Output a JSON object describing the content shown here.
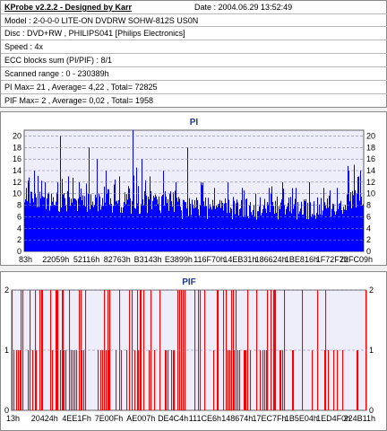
{
  "info": {
    "app_title": "KProbe v2.2.2 - Designed by Karr",
    "date": "Date : 2004.06.29 13:52:49",
    "lines": [
      "Model : 2-0-0-0 LITE-ON DVDRW SOHW-812S  US0N",
      "Disc : DVD+RW , PHILIPS041 [Philips Electronics]",
      "Speed : 4x",
      "ECC blocks sum (PI/PIF) : 8/1",
      "Scanned range : 0 - 230389h",
      "PI Max= 21 , Average= 4,22 , Total= 72825",
      "PIF Max= 2 , Average= 0,02 , Total= 1958"
    ]
  },
  "colors": {
    "pi_bar": "#0000ff",
    "pif_bar": "#ff0000",
    "plot_bg": "#eeeefa",
    "grid": "#8080a0",
    "title": "#1c3a8c"
  },
  "chart_data": [
    {
      "type": "bar",
      "title": "PI",
      "ylim": [
        0,
        21
      ],
      "yticks_left": [
        "20",
        "18",
        "16",
        "14",
        "12",
        "10",
        "8",
        "6",
        "4",
        "2",
        "0"
      ],
      "yticks_right": [
        "20",
        "18",
        "16",
        "14",
        "12",
        "10",
        "8",
        "6",
        "4",
        "2",
        "0"
      ],
      "xticks": [
        "83h",
        "22059h",
        "52116h",
        "82763h",
        "B3143h",
        "E3899h",
        "116F70h",
        "14EB31h",
        "186624h",
        "1BE816h",
        "1F72F7h",
        "22FC09h"
      ],
      "grid": "dashed horizontal",
      "baseline_level": 7,
      "max": 21,
      "average": 4.22,
      "spikes": [
        {
          "x": 0.004,
          "v": 11
        },
        {
          "x": 0.03,
          "v": 14
        },
        {
          "x": 0.06,
          "v": 12
        },
        {
          "x": 0.08,
          "v": 10
        },
        {
          "x": 0.105,
          "v": 20
        },
        {
          "x": 0.13,
          "v": 13
        },
        {
          "x": 0.16,
          "v": 12
        },
        {
          "x": 0.19,
          "v": 18
        },
        {
          "x": 0.215,
          "v": 16
        },
        {
          "x": 0.24,
          "v": 14
        },
        {
          "x": 0.28,
          "v": 13
        },
        {
          "x": 0.32,
          "v": 21
        },
        {
          "x": 0.345,
          "v": 16
        },
        {
          "x": 0.37,
          "v": 13
        },
        {
          "x": 0.41,
          "v": 14
        },
        {
          "x": 0.445,
          "v": 12
        },
        {
          "x": 0.48,
          "v": 18
        },
        {
          "x": 0.52,
          "v": 12
        },
        {
          "x": 0.56,
          "v": 11
        },
        {
          "x": 0.6,
          "v": 12
        },
        {
          "x": 0.64,
          "v": 11
        },
        {
          "x": 0.68,
          "v": 10
        },
        {
          "x": 0.72,
          "v": 11
        },
        {
          "x": 0.76,
          "v": 12
        },
        {
          "x": 0.8,
          "v": 11
        },
        {
          "x": 0.84,
          "v": 12
        },
        {
          "x": 0.88,
          "v": 11
        },
        {
          "x": 0.92,
          "v": 11
        },
        {
          "x": 0.955,
          "v": 14
        },
        {
          "x": 0.97,
          "v": 15
        },
        {
          "x": 0.985,
          "v": 13
        }
      ]
    },
    {
      "type": "bar",
      "title": "PIF",
      "ylim": [
        0,
        2
      ],
      "yticks_left": [
        "2",
        "1",
        "0"
      ],
      "yticks_right": [
        "2",
        "1",
        "0"
      ],
      "xticks": [
        "13h",
        "20424h",
        "4EE1Fh",
        "7E00Fh",
        "AE007h",
        "DE4C4h",
        "111CE6h",
        "148674h",
        "17EC7Fh",
        "1B5E04h",
        "1ED4F0h",
        "224B11h"
      ],
      "grid": "dashed horizontal",
      "max": 2,
      "average": 0.02,
      "density": [
        {
          "from": 0.0,
          "to": 0.12,
          "p": 0.45,
          "p2": 0.35
        },
        {
          "from": 0.12,
          "to": 0.3,
          "p": 0.6,
          "p2": 0.45
        },
        {
          "from": 0.3,
          "to": 0.55,
          "p": 0.45,
          "p2": 0.4
        },
        {
          "from": 0.55,
          "to": 0.8,
          "p": 0.5,
          "p2": 0.45
        },
        {
          "from": 0.8,
          "to": 1.0,
          "p": 0.35,
          "p2": 0.3
        }
      ]
    }
  ]
}
